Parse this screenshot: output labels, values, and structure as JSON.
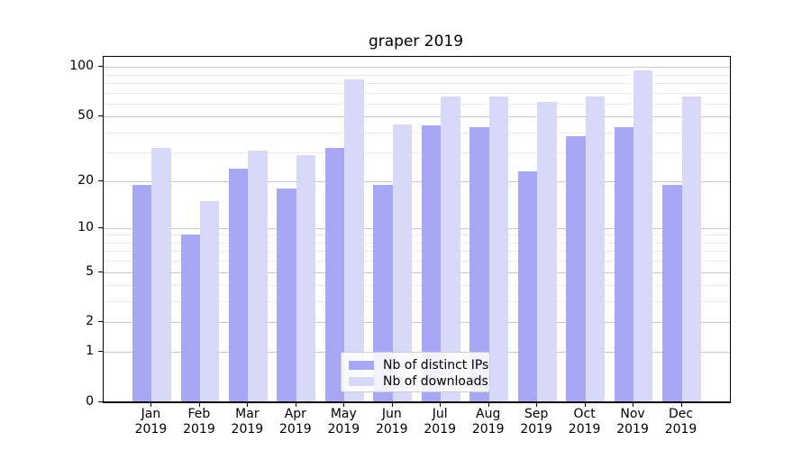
{
  "title": "graper 2019",
  "chart_data": {
    "type": "bar",
    "title": "graper 2019",
    "categories": [
      "Jan 2019",
      "Feb 2019",
      "Mar 2019",
      "Apr 2019",
      "May 2019",
      "Jun 2019",
      "Jul 2019",
      "Aug 2019",
      "Sep 2019",
      "Oct 2019",
      "Nov 2019",
      "Dec 2019"
    ],
    "series": [
      {
        "name": "Nb of distinct IPs",
        "color": "#a7a7f5",
        "values": [
          19,
          9,
          24,
          18,
          32,
          19,
          44,
          43,
          23,
          38,
          43,
          19
        ]
      },
      {
        "name": "Nb of downloads",
        "color": "#d8d8f8",
        "values": [
          32,
          15,
          31,
          29,
          84,
          45,
          66,
          66,
          61,
          66,
          95,
          66
        ]
      }
    ],
    "xlabel": "",
    "ylabel": "",
    "yscale": "log1p",
    "yticks_major": [
      0,
      1,
      2,
      5,
      10,
      20,
      50,
      100
    ],
    "yticks_minor": [
      3,
      4,
      6,
      7,
      8,
      9,
      30,
      40,
      60,
      70,
      80,
      90
    ],
    "ylim": [
      0,
      115
    ],
    "grid": true,
    "legend_position": "lower center"
  },
  "legend": {
    "items": [
      "Nb of distinct IPs",
      "Nb of downloads"
    ]
  },
  "colors": {
    "bar_distinct_ips": "#a7a7f5",
    "bar_downloads": "#d8d8f8",
    "grid_major": "#c9c9c9",
    "grid_minor": "#ebebeb",
    "axis": "#000000",
    "legend_border": "#cccccc"
  }
}
